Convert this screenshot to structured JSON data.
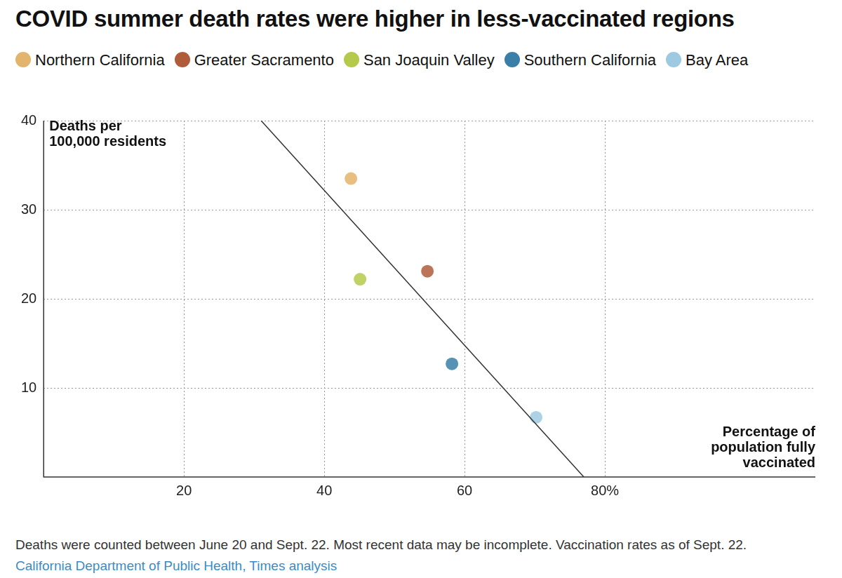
{
  "chart_data": {
    "type": "scatter",
    "title": "COVID summer death rates were higher in less-vaccinated regions",
    "legend": "top",
    "y_label": [
      "Deaths per",
      "100,000 residents"
    ],
    "x_label": [
      "Percentage of",
      "population fully",
      "vaccinated"
    ],
    "series": [
      {
        "name": "Northern California",
        "color": "#e3b46b",
        "x": [
          43.8
        ],
        "values": [
          33.5
        ]
      },
      {
        "name": "Greater Sacramento",
        "color": "#b05c3b",
        "x": [
          54.7
        ],
        "values": [
          23.1
        ]
      },
      {
        "name": "San Joaquin Valley",
        "color": "#b5c94a",
        "x": [
          45.1
        ],
        "values": [
          22.2
        ]
      },
      {
        "name": "Southern California",
        "color": "#3a7fa8",
        "x": [
          58.2
        ],
        "values": [
          12.7
        ]
      },
      {
        "name": "Bay Area",
        "color": "#9ecae1",
        "x": [
          70.2
        ],
        "values": [
          6.7
        ]
      }
    ],
    "trend_line": {
      "x": [
        31,
        77
      ],
      "values": [
        40,
        0
      ],
      "color": "#333333"
    },
    "xlim": [
      0,
      110
    ],
    "xticks": [
      20,
      40,
      60,
      {
        "value": 80,
        "label": "80%"
      }
    ],
    "ylim": [
      0,
      40
    ],
    "yticks": [
      10,
      20,
      30,
      40
    ],
    "grid": true,
    "notes": "Deaths were counted between June 20 and Sept. 22. Most recent data may be incomplete. Vaccination rates as of Sept. 22.",
    "source": "California Department of Public Health, Times analysis"
  }
}
